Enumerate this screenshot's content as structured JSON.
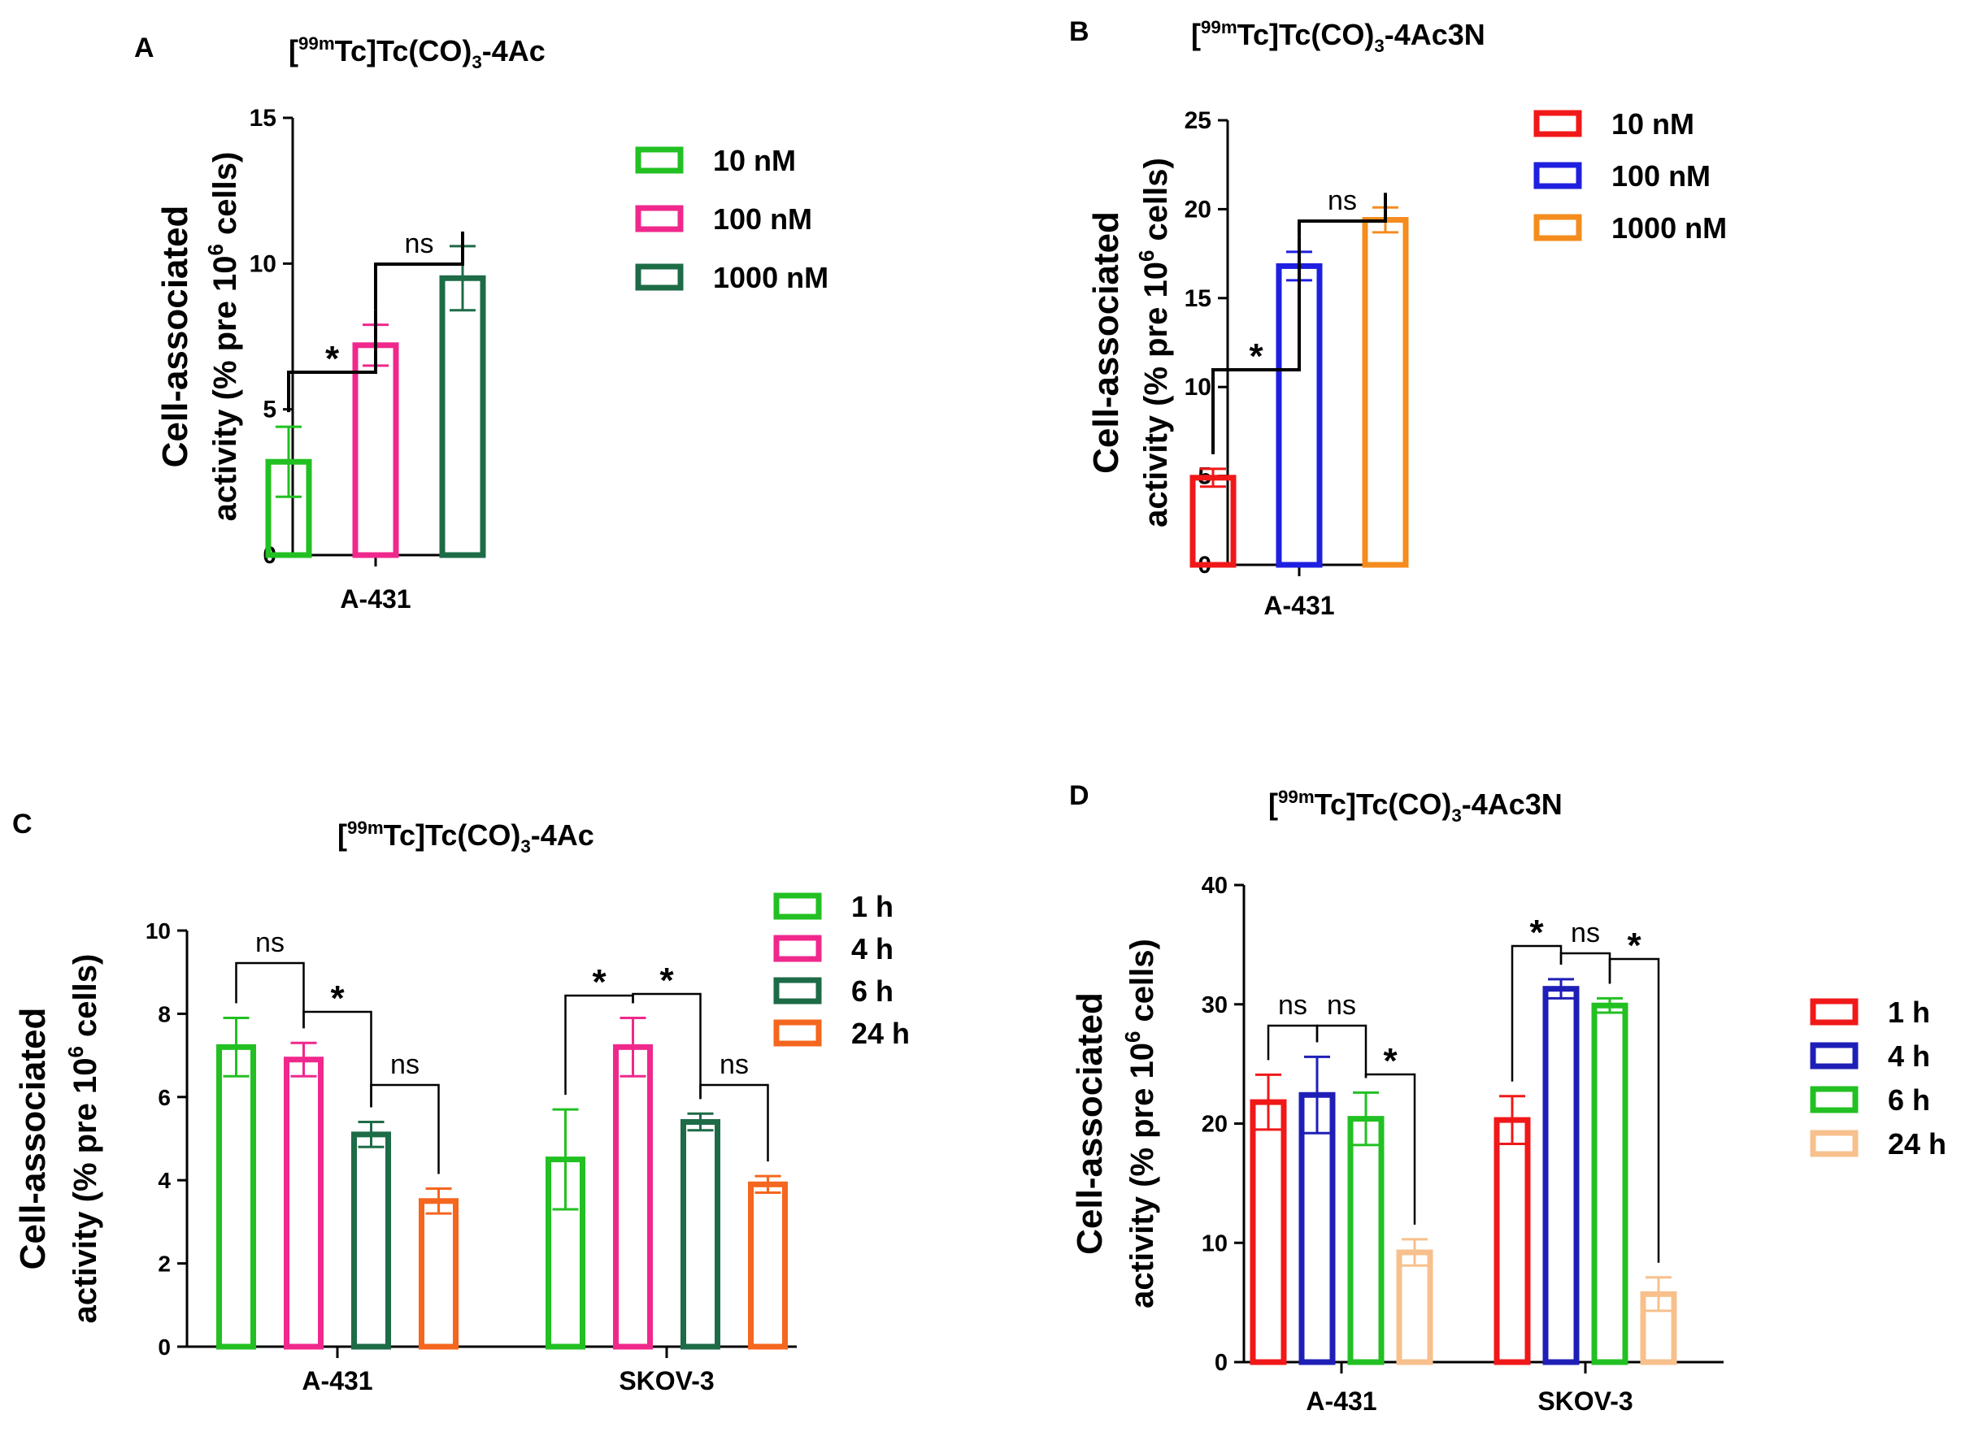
{
  "chart_data": [
    {
      "id": "A",
      "type": "bar",
      "panel_label": "A",
      "title_prefix": "[",
      "title_sup": "99m",
      "title_main": "Tc]Tc(CO)",
      "title_sub": "3",
      "title_suffix": "-4Ac",
      "ylabel_line1": "Cell-associated",
      "ylabel_line2_a": "activity (% pre 10",
      "ylabel_line2_sup": "6",
      "ylabel_line2_b": " cells)",
      "ylim": [
        0,
        15
      ],
      "yticks": [
        "0",
        "5",
        "10",
        "15"
      ],
      "categories": [
        "A-431"
      ],
      "series": [
        {
          "name": "10 nM",
          "color": "#22c022",
          "values": [
            3.2
          ],
          "errors": [
            1.2
          ]
        },
        {
          "name": "100 nM",
          "color": "#f0288c",
          "values": [
            7.2
          ],
          "errors": [
            0.7
          ]
        },
        {
          "name": "1000 nM",
          "color": "#1d6b47",
          "values": [
            9.5
          ],
          "errors": [
            1.1
          ]
        }
      ],
      "annotations": [
        {
          "text": "*",
          "from": 0,
          "to": 1
        },
        {
          "text": "ns",
          "from": 1,
          "to": 2
        }
      ]
    },
    {
      "id": "B",
      "type": "bar",
      "panel_label": "B",
      "title_prefix": "[",
      "title_sup": "99m",
      "title_main": "Tc]Tc(CO)",
      "title_sub": "3",
      "title_suffix": "-4Ac3N",
      "ylabel_line1": "Cell-associated",
      "ylabel_line2_a": "activity (% pre 10",
      "ylabel_line2_sup": "6",
      "ylabel_line2_b": " cells)",
      "ylim": [
        0,
        25
      ],
      "yticks": [
        "0",
        "5",
        "10",
        "15",
        "20",
        "25"
      ],
      "categories": [
        "A-431"
      ],
      "series": [
        {
          "name": "10 nM",
          "color": "#f01818",
          "values": [
            4.9
          ],
          "errors": [
            0.5
          ]
        },
        {
          "name": "100 nM",
          "color": "#1f1fe0",
          "values": [
            16.8
          ],
          "errors": [
            0.8
          ]
        },
        {
          "name": "1000 nM",
          "color": "#f58c1e",
          "values": [
            19.4
          ],
          "errors": [
            0.7
          ]
        }
      ],
      "annotations": [
        {
          "text": "*",
          "from": 0,
          "to": 1
        },
        {
          "text": "ns",
          "from": 1,
          "to": 2
        }
      ]
    },
    {
      "id": "C",
      "type": "bar",
      "panel_label": "C",
      "title_prefix": "[",
      "title_sup": "99m",
      "title_main": "Tc]Tc(CO)",
      "title_sub": "3",
      "title_suffix": "-4Ac",
      "ylabel_line1": "Cell-associated",
      "ylabel_line2_a": "activity (% pre 10",
      "ylabel_line2_sup": "6",
      "ylabel_line2_b": " cells)",
      "ylim": [
        0,
        10
      ],
      "yticks": [
        "0",
        "2",
        "4",
        "6",
        "8",
        "10"
      ],
      "categories": [
        "A-431",
        "SKOV-3"
      ],
      "series": [
        {
          "name": "1 h",
          "color": "#22c022",
          "values": [
            7.2,
            4.5
          ],
          "errors": [
            0.7,
            1.2
          ]
        },
        {
          "name": "4 h",
          "color": "#f0288c",
          "values": [
            6.9,
            7.2
          ],
          "errors": [
            0.4,
            0.7
          ]
        },
        {
          "name": "6 h",
          "color": "#1d6b47",
          "values": [
            5.1,
            5.4
          ],
          "errors": [
            0.3,
            0.2
          ]
        },
        {
          "name": "24 h",
          "color": "#f5661e",
          "values": [
            3.5,
            3.9
          ],
          "errors": [
            0.3,
            0.2
          ]
        }
      ],
      "annotations": [
        {
          "text": "ns",
          "group": 0,
          "from": 0,
          "to": 1
        },
        {
          "text": "*",
          "group": 0,
          "from": 1,
          "to": 2
        },
        {
          "text": "ns",
          "group": 0,
          "from": 2,
          "to": 3
        },
        {
          "text": "*",
          "group": 1,
          "from": 0,
          "to": 1
        },
        {
          "text": "*",
          "group": 1,
          "from": 1,
          "to": 2
        },
        {
          "text": "ns",
          "group": 1,
          "from": 2,
          "to": 3
        }
      ]
    },
    {
      "id": "D",
      "type": "bar",
      "panel_label": "D",
      "title_prefix": "[",
      "title_sup": "99m",
      "title_main": "Tc]Tc(CO)",
      "title_sub": "3",
      "title_suffix": "-4Ac3N",
      "ylabel_line1": "Cell-associated",
      "ylabel_line2_a": "activity (% pre 10",
      "ylabel_line2_sup": "6",
      "ylabel_line2_b": " cells)",
      "ylim": [
        0,
        40
      ],
      "yticks": [
        "0",
        "10",
        "20",
        "30",
        "40"
      ],
      "categories": [
        "A-431",
        "SKOV-3"
      ],
      "series": [
        {
          "name": "1 h",
          "color": "#f01818",
          "values": [
            21.8,
            20.3
          ],
          "errors": [
            2.3,
            2.0
          ]
        },
        {
          "name": "4 h",
          "color": "#1f1fb8",
          "values": [
            22.4,
            31.3
          ],
          "errors": [
            3.2,
            0.8
          ]
        },
        {
          "name": "6 h",
          "color": "#22c022",
          "values": [
            20.4,
            29.9
          ],
          "errors": [
            2.2,
            0.6
          ]
        },
        {
          "name": "24 h",
          "color": "#f7c08c",
          "values": [
            9.2,
            5.7
          ],
          "errors": [
            1.1,
            1.4
          ]
        }
      ],
      "annotations": [
        {
          "text": "ns",
          "group": 0,
          "from": 0,
          "to": 1
        },
        {
          "text": "ns",
          "group": 0,
          "from": 1,
          "to": 2
        },
        {
          "text": "*",
          "group": 0,
          "from": 2,
          "to": 3
        },
        {
          "text": "*",
          "group": 1,
          "from": 0,
          "to": 1
        },
        {
          "text": "ns",
          "group": 1,
          "from": 1,
          "to": 2
        },
        {
          "text": "*",
          "group": 1,
          "from": 2,
          "to": 3
        }
      ]
    }
  ]
}
